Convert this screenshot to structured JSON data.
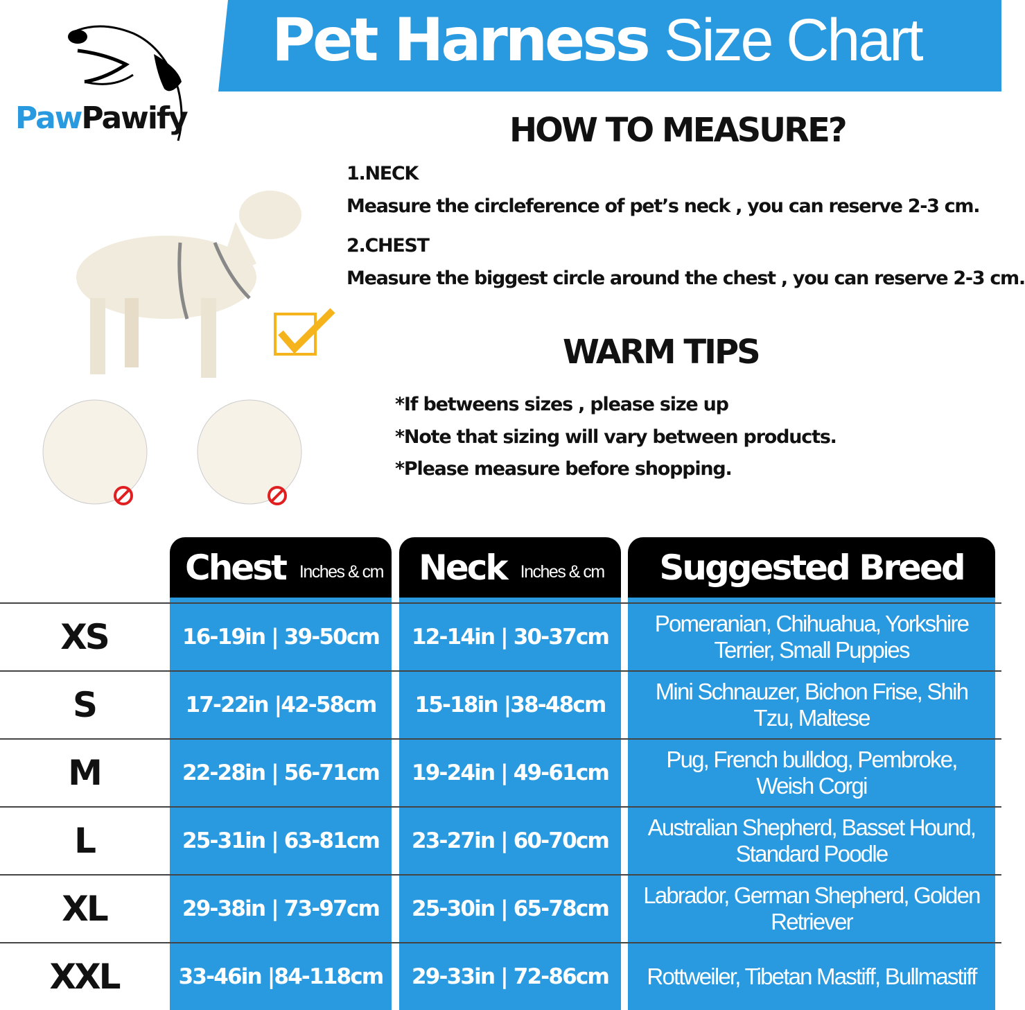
{
  "brand": {
    "part1": "Paw",
    "part2": "Pawify"
  },
  "title": {
    "bold": "Pet Harness",
    "light": "Size Chart"
  },
  "measure": {
    "heading": "HOW TO MEASURE?",
    "steps": [
      {
        "label": "1.NECK",
        "text": "Measure the circleference of pet’s neck , you can reserve 2-3 cm."
      },
      {
        "label": "2.CHEST",
        "text": "Measure the biggest circle around the chest , you can reserve 2-3 cm."
      }
    ]
  },
  "tips": {
    "heading": "WARM TIPS",
    "items": [
      "*If betweens sizes , please size up",
      "*Note that sizing will vary between products.",
      "*Please measure before shopping."
    ]
  },
  "colors": {
    "accent": "#2a9ae0",
    "header": "#000000",
    "check": "#f5b31c",
    "no": "#e02020"
  },
  "table": {
    "headers": [
      {
        "title": "Chest",
        "unit": "Inches & cm"
      },
      {
        "title": "Neck",
        "unit": "Inches & cm"
      },
      {
        "title": "Suggested Breed"
      }
    ],
    "rows": [
      {
        "size": "XS",
        "chest": "16-19in | 39-50cm",
        "neck": "12-14in | 30-37cm",
        "breed": "Pomeranian, Chihuahua, Yorkshire Terrier, Small Puppies"
      },
      {
        "size": "S",
        "chest": "17-22in |42-58cm",
        "neck": "15-18in |38-48cm",
        "breed": "Mini Schnauzer, Bichon Frise, Shih Tzu, Maltese"
      },
      {
        "size": "M",
        "chest": "22-28in | 56-71cm",
        "neck": "19-24in | 49-61cm",
        "breed": "Pug, French bulldog, Pembroke, Weish Corgi"
      },
      {
        "size": "L",
        "chest": "25-31in | 63-81cm",
        "neck": "23-27in | 60-70cm",
        "breed": "Australian Shepherd, Basset Hound, Standard Poodle"
      },
      {
        "size": "XL",
        "chest": "29-38in | 73-97cm",
        "neck": "25-30in | 65-78cm",
        "breed": "Labrador, German Shepherd, Golden Retriever"
      },
      {
        "size": "XXL",
        "chest": "33-46in |84-118cm",
        "neck": "29-33in | 72-86cm",
        "breed": "Rottweiler, Tibetan Mastiff, Bullmastiff"
      }
    ]
  }
}
